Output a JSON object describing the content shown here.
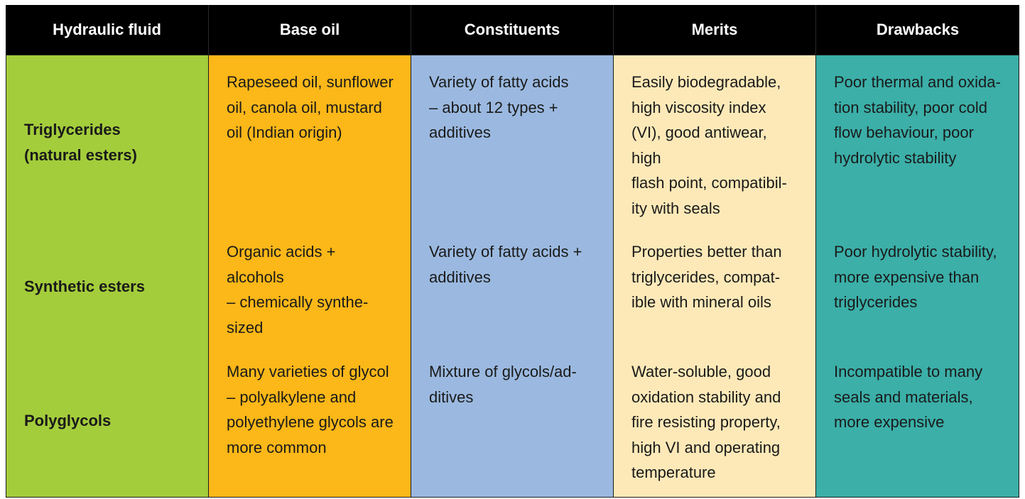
{
  "colors": {
    "header_bg": "#000000",
    "hydraulic_fluid": "#a4cd3b",
    "base_oil": "#fcb718",
    "constituents": "#9bb9e0",
    "merits": "#fde9b8",
    "drawbacks": "#3bafa8"
  },
  "header": {
    "hydraulic_fluid": "Hydraulic fluid",
    "base_oil": "Base oil",
    "constituents": "Constituents",
    "merits": "Merits",
    "drawbacks": "Drawbacks"
  },
  "rows": [
    {
      "hydraulic_fluid": "Triglycerides\n(natural esters)",
      "base_oil": "Rapeseed oil, sunflower\noil, canola oil, mustard\noil (Indian origin)",
      "constituents": "Variety of fatty acids\n– about 12 types +\nadditives",
      "merits": "Easily biodegradable,\nhigh viscosity index\n(VI), good antiwear, high\nflash point, compatibil-\nity with seals",
      "drawbacks": "Poor thermal and oxida-\ntion stability, poor cold\nflow behaviour, poor\nhydrolytic stability"
    },
    {
      "hydraulic_fluid": "Synthetic esters",
      "base_oil": "Organic acids + alcohols\n– chemically synthe-\nsized",
      "constituents": "Variety of fatty acids +\nadditives",
      "merits": "Properties better than\ntriglycerides, compat-\nible with mineral oils",
      "drawbacks": "Poor hydrolytic stability,\nmore expensive than\ntriglycerides"
    },
    {
      "hydraulic_fluid": "Polyglycols",
      "base_oil": "Many varieties of glycol\n– polyalkylene and\npolyethylene glycols are\nmore common",
      "constituents": "Mixture of glycols/ad-\nditives",
      "merits": "Water-soluble, good\noxidation  stability and\nfire resisting  property,\nhigh VI and  operating\ntemperature",
      "drawbacks": "Incompatible to many\nseals and materials,\nmore expensive"
    }
  ]
}
